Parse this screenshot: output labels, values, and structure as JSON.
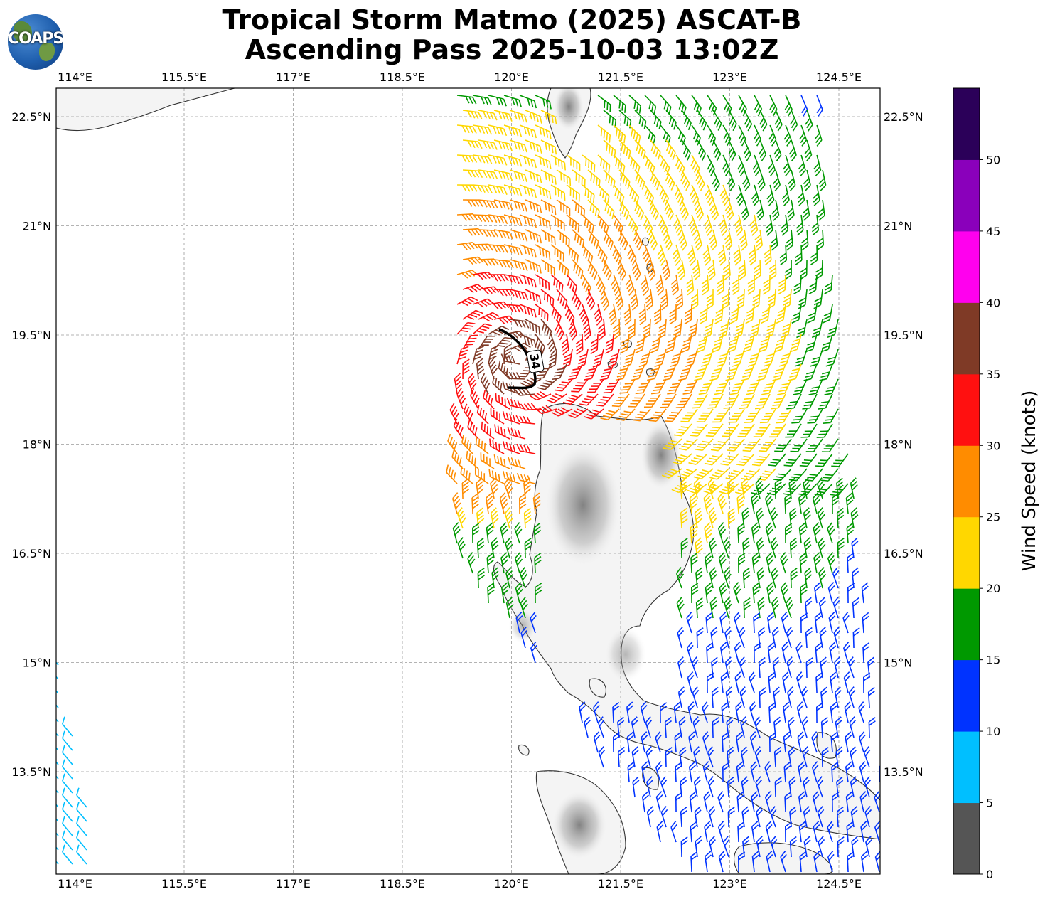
{
  "title_line1": "Tropical Storm Matmo (2025) ASCAT-B",
  "title_line2": "Ascending Pass 2025-10-03 13:02Z",
  "logo_text": "COAPS",
  "lon_ticks": [
    "114°E",
    "115.5°E",
    "117°E",
    "118.5°E",
    "120°E",
    "121.5°E",
    "123°E",
    "124.5°E"
  ],
  "lat_ticks": [
    "22.5°N",
    "21°N",
    "19.5°N",
    "18°N",
    "16.5°N",
    "15°N",
    "13.5°N"
  ],
  "contour_label": "34",
  "colorbar": {
    "label": "Wind Speed (knots)",
    "ticks": [
      "0",
      "5",
      "10",
      "15",
      "20",
      "25",
      "30",
      "35",
      "40",
      "45",
      "50"
    ],
    "colors": [
      "#555555",
      "#00bfff",
      "#0033ff",
      "#009900",
      "#ffd700",
      "#ff8c00",
      "#ff1010",
      "#7f3a26",
      "#ff00ee",
      "#8a00bb",
      "#2b0059"
    ]
  }
}
